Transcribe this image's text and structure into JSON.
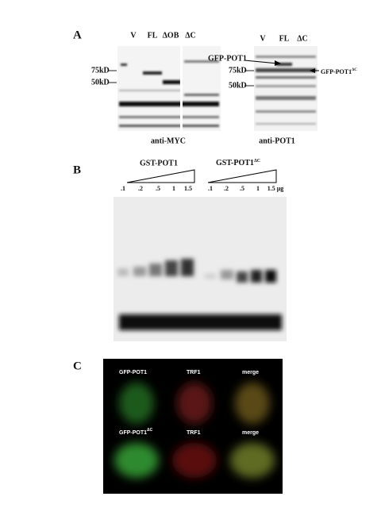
{
  "panel_a": {
    "label": "A",
    "left_blot": {
      "lanes": [
        "V",
        "FL",
        "ΔOB",
        "ΔC"
      ],
      "markers": [
        "75kD",
        "50kD"
      ],
      "caption": "anti-MYC"
    },
    "right_blot": {
      "lanes": [
        "V",
        "FL",
        "ΔC"
      ],
      "markers": [
        "75kD",
        "50kD"
      ],
      "arrows": [
        {
          "text": "GFP-POT1"
        },
        {
          "text": "GFP-POT1",
          "sup": "ΔC"
        }
      ],
      "caption": "anti-POT1"
    }
  },
  "panel_b": {
    "label": "B",
    "groups": [
      {
        "name": {
          "text": "GST-POT1"
        },
        "lanes": [
          ".1",
          ".2",
          ".5",
          "1",
          "1.5"
        ]
      },
      {
        "name": {
          "text": "GST-POT1",
          "sup": "ΔC"
        },
        "lanes": [
          ".1",
          ".2",
          ".5",
          "1",
          "1.5 µg"
        ]
      }
    ]
  },
  "panel_c": {
    "label": "C",
    "rows": [
      [
        {
          "text": "GFP-POT1"
        },
        {
          "text": "TRF1"
        },
        {
          "text": "merge"
        }
      ],
      [
        {
          "text": "GFP-POT1",
          "sup": "ΔC"
        },
        {
          "text": "TRF1"
        },
        {
          "text": "merge"
        }
      ]
    ]
  }
}
